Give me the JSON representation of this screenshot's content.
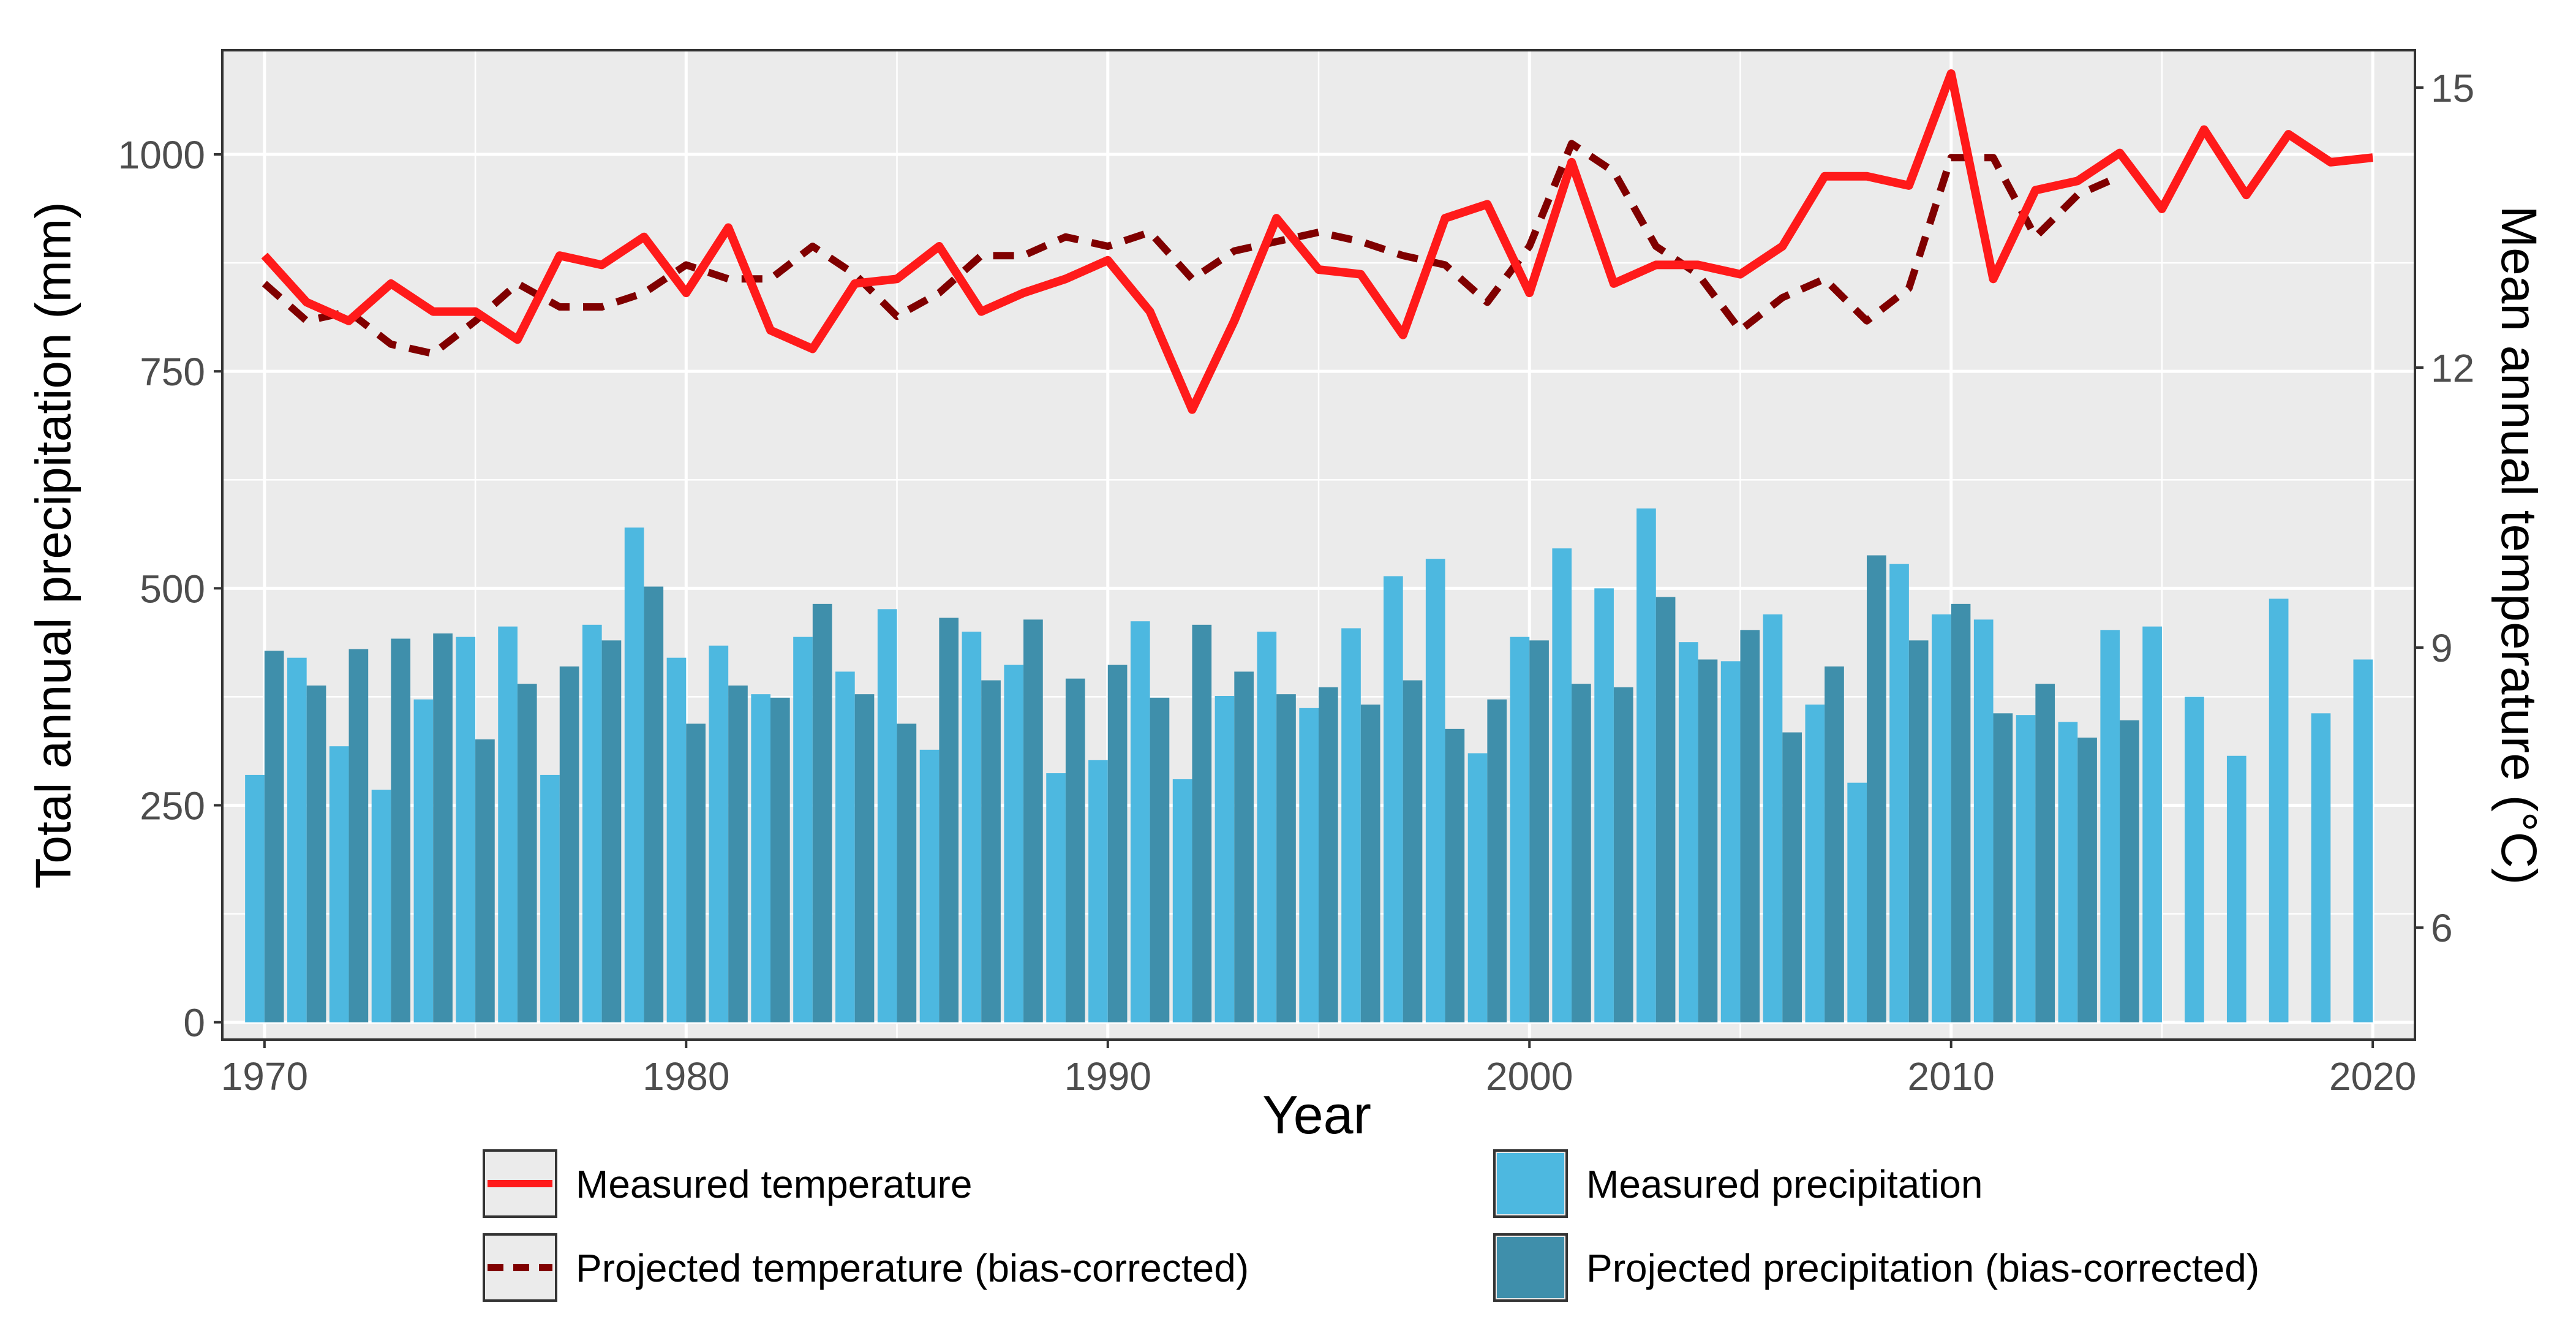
{
  "chart_data": {
    "type": "bar+line",
    "xlabel": "Year",
    "ylabel_left": "Total annual precipitation (mm)",
    "ylabel_right": "Mean annual temperature (°C)",
    "xlim": [
      1969.0,
      2021.0
    ],
    "ylim_left": [
      -20,
      1120
    ],
    "ylim_right": [
      4.8,
      15.4
    ],
    "x_ticks": [
      "1970",
      "1980",
      "1990",
      "2000",
      "2010",
      "2020"
    ],
    "y_ticks_left": [
      "0",
      "250",
      "500",
      "750",
      "1000"
    ],
    "y_ticks_right": [
      "6",
      "9",
      "12",
      "15"
    ],
    "grid": true,
    "legend_position": "bottom",
    "colors": {
      "panel": "#ebebeb",
      "grid": "#ffffff",
      "axis_text": "#4d4d4d",
      "measured_precip": "#4db8e0",
      "projected_precip": "#3f8fab",
      "measured_temp": "#ff1a1a",
      "projected_temp": "#800000"
    },
    "years": [
      1970,
      1971,
      1972,
      1973,
      1974,
      1975,
      1976,
      1977,
      1978,
      1979,
      1980,
      1981,
      1982,
      1983,
      1984,
      1985,
      1986,
      1987,
      1988,
      1989,
      1990,
      1991,
      1992,
      1993,
      1994,
      1995,
      1996,
      1997,
      1998,
      1999,
      2000,
      2001,
      2002,
      2003,
      2004,
      2005,
      2006,
      2007,
      2008,
      2009,
      2010,
      2011,
      2012,
      2013,
      2014,
      2015,
      2016,
      2017,
      2018,
      2019,
      2020
    ],
    "series": [
      {
        "name": "Measured precipitation",
        "kind": "bar",
        "axis": "left",
        "values": [
          285,
          420,
          318,
          268,
          372,
          444,
          456,
          285,
          458,
          570,
          420,
          434,
          378,
          444,
          404,
          476,
          314,
          450,
          412,
          287,
          302,
          462,
          280,
          376,
          450,
          362,
          454,
          514,
          534,
          310,
          444,
          546,
          500,
          592,
          438,
          416,
          470,
          366,
          276,
          528,
          470,
          464,
          354,
          346,
          452,
          456,
          375,
          307,
          488,
          356,
          418
        ]
      },
      {
        "name": "Projected precipitation (bias-corrected)",
        "kind": "bar",
        "axis": "left",
        "values": [
          428,
          388,
          430,
          442,
          448,
          326,
          390,
          410,
          440,
          502,
          344,
          388,
          374,
          482,
          378,
          344,
          466,
          394,
          464,
          396,
          412,
          374,
          458,
          404,
          378,
          386,
          366,
          394,
          338,
          372,
          440,
          390,
          386,
          490,
          418,
          452,
          334,
          410,
          538,
          440,
          482,
          356,
          390,
          328,
          348
        ]
      },
      {
        "name": "Measured temperature",
        "kind": "line",
        "axis": "right",
        "values": [
          13.2,
          12.7,
          12.5,
          12.9,
          12.6,
          12.6,
          12.3,
          13.2,
          13.1,
          13.4,
          12.8,
          13.5,
          12.4,
          12.2,
          12.9,
          12.95,
          13.3,
          12.6,
          12.8,
          12.95,
          13.15,
          12.6,
          11.55,
          12.5,
          13.6,
          13.05,
          13.0,
          12.35,
          13.6,
          13.75,
          12.8,
          14.2,
          12.9,
          13.1,
          13.1,
          13.0,
          13.3,
          14.05,
          14.05,
          13.95,
          15.15,
          12.95,
          13.9,
          14.0,
          14.3,
          13.7,
          14.55,
          13.85,
          14.5,
          14.2,
          14.25
        ]
      },
      {
        "name": "Projected temperature (bias-corrected)",
        "kind": "line-dashed",
        "axis": "right",
        "values": [
          12.9,
          12.5,
          12.6,
          12.25,
          12.15,
          12.5,
          12.9,
          12.65,
          12.65,
          12.8,
          13.1,
          12.95,
          12.95,
          13.3,
          13.0,
          12.55,
          12.8,
          13.2,
          13.2,
          13.4,
          13.3,
          13.45,
          12.95,
          13.25,
          13.35,
          13.45,
          13.35,
          13.2,
          13.1,
          12.7,
          13.3,
          14.4,
          14.1,
          13.3,
          13.0,
          12.4,
          12.75,
          12.95,
          12.5,
          12.85,
          14.25,
          14.25,
          13.4,
          13.85,
          14.05
        ]
      }
    ],
    "legend": [
      {
        "label": "Measured temperature",
        "swatch": "line"
      },
      {
        "label": "Measured precipitation",
        "swatch": "box"
      },
      {
        "label": "Projected temperature (bias-corrected)",
        "swatch": "dashed"
      },
      {
        "label": "Projected precipitation (bias-corrected)",
        "swatch": "box"
      }
    ]
  }
}
